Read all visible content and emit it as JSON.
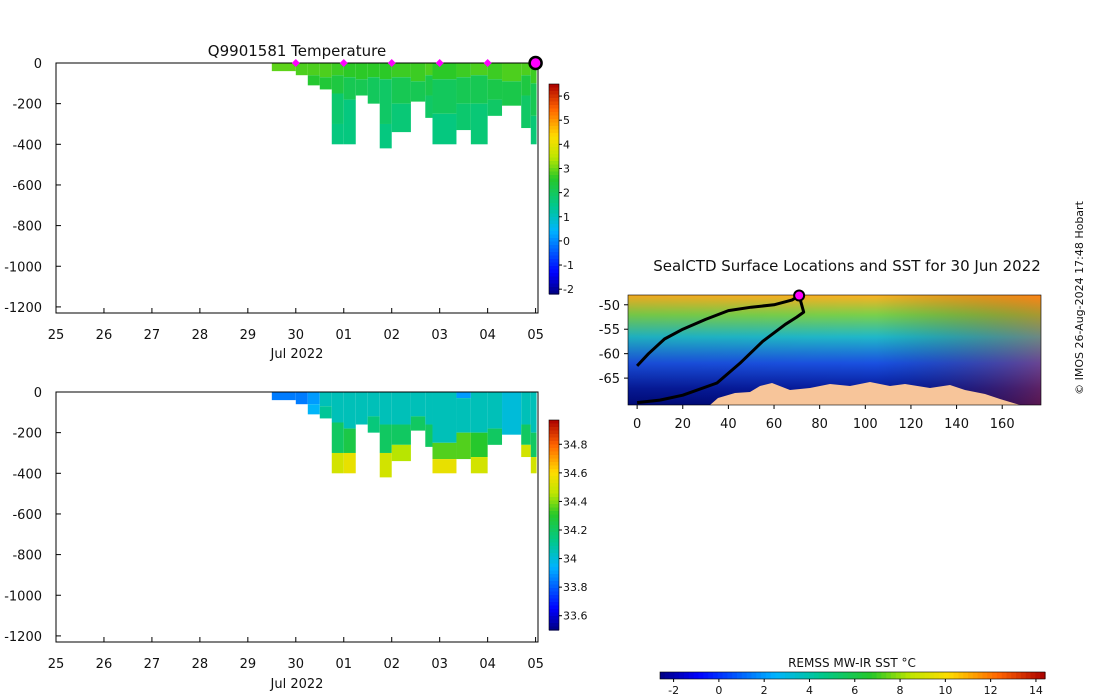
{
  "charts": {
    "temperature": {
      "type": "heatmap",
      "title": "Q9901581  Temperature",
      "xlabel": "Jul 2022",
      "x_ticks": [
        "25",
        "26",
        "27",
        "28",
        "29",
        "30",
        "01",
        "02",
        "03",
        "04",
        "05"
      ],
      "y_ticks": [
        "0",
        "-200",
        "-400",
        "-600",
        "-800",
        "-1000",
        "-1200"
      ],
      "y_values": [
        0,
        -200,
        -400,
        -600,
        -800,
        -1000,
        -1200
      ],
      "ylim": [
        -1230,
        0
      ],
      "xlim_days": [
        25,
        35.05
      ],
      "colorbar": {
        "ticks": [
          "6",
          "5",
          "4",
          "3",
          "2",
          "1",
          "0",
          "-1",
          "-2"
        ],
        "values": [
          6,
          5,
          4,
          3,
          2,
          1,
          0,
          -1,
          -2
        ],
        "min": -2.2,
        "max": 6.5
      },
      "profiles": [
        {
          "t0": 29.5,
          "t1": 30.0,
          "dmax": 40,
          "layers": [
            [
              0,
              40,
              2.9
            ]
          ]
        },
        {
          "t0": 30.0,
          "t1": 30.25,
          "dmax": 60,
          "layers": [
            [
              0,
              60,
              2.8
            ]
          ]
        },
        {
          "t0": 30.25,
          "t1": 30.5,
          "dmax": 110,
          "layers": [
            [
              0,
              60,
              2.8
            ],
            [
              60,
              110,
              2.5
            ]
          ]
        },
        {
          "t0": 30.5,
          "t1": 30.75,
          "dmax": 130,
          "layers": [
            [
              0,
              70,
              2.8
            ],
            [
              70,
              130,
              2.4
            ]
          ]
        },
        {
          "t0": 30.75,
          "t1": 31.0,
          "dmax": 400,
          "layers": [
            [
              0,
              60,
              2.7
            ],
            [
              60,
              150,
              2.3
            ],
            [
              150,
              300,
              1.8
            ],
            [
              300,
              400,
              1.6
            ]
          ]
        },
        {
          "t0": 31.0,
          "t1": 31.25,
          "dmax": 400,
          "layers": [
            [
              0,
              70,
              2.6
            ],
            [
              70,
              180,
              2.1
            ],
            [
              180,
              400,
              1.6
            ]
          ]
        },
        {
          "t0": 31.25,
          "t1": 31.5,
          "dmax": 160,
          "layers": [
            [
              0,
              80,
              2.6
            ],
            [
              80,
              160,
              2.1
            ]
          ]
        },
        {
          "t0": 31.5,
          "t1": 31.75,
          "dmax": 200,
          "layers": [
            [
              0,
              70,
              2.6
            ],
            [
              70,
              200,
              2.0
            ]
          ]
        },
        {
          "t0": 31.75,
          "t1": 32.0,
          "dmax": 420,
          "layers": [
            [
              0,
              80,
              2.6
            ],
            [
              80,
              300,
              1.9
            ],
            [
              300,
              420,
              1.6
            ]
          ]
        },
        {
          "t0": 32.0,
          "t1": 32.4,
          "dmax": 340,
          "layers": [
            [
              0,
              70,
              2.7
            ],
            [
              70,
              200,
              2.1
            ],
            [
              200,
              340,
              1.7
            ]
          ]
        },
        {
          "t0": 32.4,
          "t1": 32.7,
          "dmax": 190,
          "layers": [
            [
              0,
              90,
              2.7
            ],
            [
              90,
              190,
              2.1
            ]
          ]
        },
        {
          "t0": 32.7,
          "t1": 32.85,
          "dmax": 270,
          "layers": [
            [
              0,
              60,
              2.8
            ],
            [
              60,
              160,
              2.2
            ],
            [
              160,
              270,
              1.9
            ]
          ]
        },
        {
          "t0": 32.85,
          "t1": 33.35,
          "dmax": 400,
          "layers": [
            [
              0,
              80,
              2.6
            ],
            [
              80,
              250,
              2.0
            ],
            [
              250,
              400,
              1.6
            ]
          ]
        },
        {
          "t0": 33.35,
          "t1": 33.65,
          "dmax": 330,
          "layers": [
            [
              0,
              70,
              2.7
            ],
            [
              70,
              200,
              2.1
            ],
            [
              200,
              330,
              1.8
            ]
          ]
        },
        {
          "t0": 33.65,
          "t1": 34.0,
          "dmax": 400,
          "layers": [
            [
              0,
              60,
              2.8
            ],
            [
              60,
              200,
              2.1
            ],
            [
              200,
              400,
              1.7
            ]
          ]
        },
        {
          "t0": 34.0,
          "t1": 34.3,
          "dmax": 260,
          "layers": [
            [
              0,
              80,
              2.7
            ],
            [
              80,
              180,
              2.2
            ],
            [
              180,
              260,
              1.9
            ]
          ]
        },
        {
          "t0": 34.3,
          "t1": 34.7,
          "dmax": 210,
          "layers": [
            [
              0,
              90,
              2.8
            ],
            [
              90,
              210,
              2.2
            ]
          ]
        },
        {
          "t0": 34.7,
          "t1": 34.9,
          "dmax": 320,
          "layers": [
            [
              0,
              60,
              2.8
            ],
            [
              60,
              160,
              2.3
            ],
            [
              160,
              320,
              1.9
            ]
          ]
        },
        {
          "t0": 34.9,
          "t1": 35.02,
          "dmax": 400,
          "layers": [
            [
              0,
              100,
              2.7
            ],
            [
              100,
              260,
              2.1
            ],
            [
              260,
              400,
              1.7
            ]
          ]
        }
      ],
      "markers": [
        30.0,
        31.0,
        32.0,
        33.0,
        34.0
      ],
      "current_marker": 35.0
    },
    "salinity": {
      "type": "heatmap",
      "title": "",
      "xlabel": "Jul 2022",
      "x_ticks": [
        "25",
        "26",
        "27",
        "28",
        "29",
        "30",
        "01",
        "02",
        "03",
        "04",
        "05"
      ],
      "y_ticks": [
        "0",
        "-200",
        "-400",
        "-600",
        "-800",
        "-1000",
        "-1200"
      ],
      "y_values": [
        0,
        -200,
        -400,
        -600,
        -800,
        -1000,
        -1200
      ],
      "ylim": [
        -1230,
        0
      ],
      "xlim_days": [
        25,
        35.05
      ],
      "colorbar": {
        "ticks": [
          "34.8",
          "34.6",
          "34.4",
          "34.2",
          "34",
          "33.8",
          "33.6"
        ],
        "values": [
          34.8,
          34.6,
          34.4,
          34.2,
          34.0,
          33.8,
          33.6
        ],
        "min": 33.5,
        "max": 34.97
      },
      "profiles": [
        {
          "t0": 29.5,
          "t1": 30.0,
          "dmax": 40,
          "layers": [
            [
              0,
              40,
              33.85
            ]
          ]
        },
        {
          "t0": 30.0,
          "t1": 30.25,
          "dmax": 60,
          "layers": [
            [
              0,
              60,
              33.85
            ]
          ]
        },
        {
          "t0": 30.25,
          "t1": 30.5,
          "dmax": 110,
          "layers": [
            [
              0,
              60,
              33.9
            ],
            [
              60,
              110,
              33.95
            ]
          ]
        },
        {
          "t0": 30.5,
          "t1": 30.75,
          "dmax": 130,
          "layers": [
            [
              0,
              70,
              34.05
            ],
            [
              70,
              130,
              34.1
            ]
          ]
        },
        {
          "t0": 30.75,
          "t1": 31.0,
          "dmax": 400,
          "layers": [
            [
              0,
              150,
              34.05
            ],
            [
              150,
              300,
              34.2
            ],
            [
              300,
              400,
              34.5
            ]
          ]
        },
        {
          "t0": 31.0,
          "t1": 31.25,
          "dmax": 400,
          "layers": [
            [
              0,
              180,
              34.05
            ],
            [
              180,
              300,
              34.25
            ],
            [
              300,
              400,
              34.55
            ]
          ]
        },
        {
          "t0": 31.25,
          "t1": 31.5,
          "dmax": 160,
          "layers": [
            [
              0,
              160,
              34.05
            ]
          ]
        },
        {
          "t0": 31.5,
          "t1": 31.75,
          "dmax": 200,
          "layers": [
            [
              0,
              120,
              34.05
            ],
            [
              120,
              200,
              34.15
            ]
          ]
        },
        {
          "t0": 31.75,
          "t1": 32.0,
          "dmax": 420,
          "layers": [
            [
              0,
              160,
              34.05
            ],
            [
              160,
              300,
              34.2
            ],
            [
              300,
              420,
              34.5
            ]
          ]
        },
        {
          "t0": 32.0,
          "t1": 32.4,
          "dmax": 340,
          "layers": [
            [
              0,
              160,
              34.05
            ],
            [
              160,
              260,
              34.2
            ],
            [
              260,
              340,
              34.45
            ]
          ]
        },
        {
          "t0": 32.4,
          "t1": 32.7,
          "dmax": 190,
          "layers": [
            [
              0,
              120,
              34.05
            ],
            [
              120,
              190,
              34.2
            ]
          ]
        },
        {
          "t0": 32.7,
          "t1": 32.85,
          "dmax": 270,
          "layers": [
            [
              0,
              160,
              34.05
            ],
            [
              160,
              270,
              34.2
            ]
          ]
        },
        {
          "t0": 32.85,
          "t1": 33.35,
          "dmax": 400,
          "layers": [
            [
              0,
              250,
              34.05
            ],
            [
              250,
              330,
              34.35
            ],
            [
              330,
              400,
              34.55
            ]
          ]
        },
        {
          "t0": 33.35,
          "t1": 33.65,
          "dmax": 330,
          "layers": [
            [
              0,
              30,
              33.9
            ],
            [
              30,
              200,
              34.05
            ],
            [
              200,
              330,
              34.35
            ]
          ]
        },
        {
          "t0": 33.65,
          "t1": 34.0,
          "dmax": 400,
          "layers": [
            [
              0,
              200,
              34.05
            ],
            [
              200,
              320,
              34.3
            ],
            [
              320,
              400,
              34.5
            ]
          ]
        },
        {
          "t0": 34.0,
          "t1": 34.3,
          "dmax": 260,
          "layers": [
            [
              0,
              180,
              34.05
            ],
            [
              180,
              260,
              34.2
            ]
          ]
        },
        {
          "t0": 34.3,
          "t1": 34.7,
          "dmax": 210,
          "layers": [
            [
              0,
              210,
              34.0
            ]
          ]
        },
        {
          "t0": 34.7,
          "t1": 34.9,
          "dmax": 320,
          "layers": [
            [
              0,
              160,
              34.05
            ],
            [
              160,
              260,
              34.2
            ],
            [
              260,
              320,
              34.5
            ]
          ]
        },
        {
          "t0": 34.9,
          "t1": 35.02,
          "dmax": 400,
          "layers": [
            [
              0,
              200,
              34.05
            ],
            [
              200,
              320,
              34.2
            ],
            [
              320,
              400,
              34.5
            ]
          ]
        }
      ]
    },
    "map": {
      "type": "heatmap",
      "title": "SealCTD Surface Locations and SST for 30 Jun 2022",
      "x_ticks": [
        "0",
        "20",
        "40",
        "60",
        "80",
        "100",
        "120",
        "140",
        "160"
      ],
      "x_values": [
        0,
        20,
        40,
        60,
        80,
        100,
        120,
        140,
        160
      ],
      "y_ticks": [
        "-50",
        "-55",
        "-60",
        "-65"
      ],
      "y_values": [
        -50,
        -55,
        -60,
        -65
      ],
      "xlim": [
        -4,
        177
      ],
      "ylim": [
        -70.5,
        -48
      ],
      "track_a": [
        [
          0,
          -62.5
        ],
        [
          5,
          -60.0
        ],
        [
          12,
          -57.0
        ],
        [
          20,
          -55.0
        ],
        [
          30,
          -53.0
        ],
        [
          40,
          -51.2
        ],
        [
          50,
          -50.5
        ],
        [
          60,
          -50.0
        ],
        [
          68,
          -49.0
        ],
        [
          71,
          -48.1
        ]
      ],
      "track_b": [
        [
          0,
          -70.0
        ],
        [
          10,
          -69.5
        ],
        [
          20,
          -68.5
        ],
        [
          35,
          -66.0
        ],
        [
          45,
          -62.0
        ],
        [
          55,
          -57.5
        ],
        [
          65,
          -54.0
        ],
        [
          70,
          -52.5
        ],
        [
          73,
          -51.5
        ],
        [
          71,
          -48.1
        ]
      ],
      "current_position": [
        71,
        -48.1
      ]
    },
    "colorbar_sst": {
      "label": "REMSS MW-IR SST °C",
      "ticks": [
        "-2",
        "0",
        "2",
        "4",
        "6",
        "8",
        "10",
        "12",
        "14"
      ],
      "values": [
        -2,
        0,
        2,
        4,
        6,
        8,
        10,
        12,
        14
      ],
      "min": -2.6,
      "max": 14.4
    }
  },
  "footer": {
    "credit": "© IMOS 26-Aug-2024 17:48 Hobart"
  },
  "colors": {
    "marker": "#ff00ff",
    "track": "#000000",
    "land": "#f7c59a"
  }
}
